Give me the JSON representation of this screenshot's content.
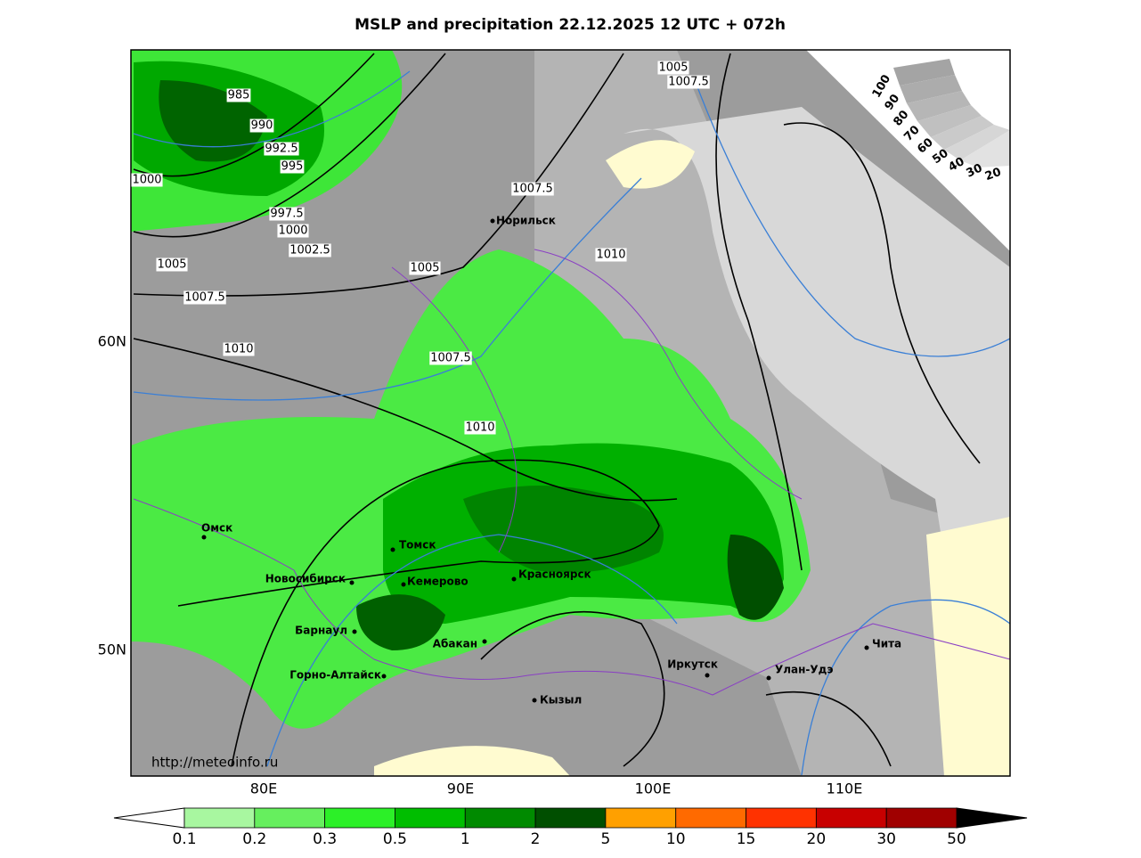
{
  "header": {
    "title": "MSLP and precipitation 22.12.2025 12 UTC + 072h"
  },
  "map": {
    "lat_labels": [
      "60N",
      "50N"
    ],
    "lon_labels": [
      "80E",
      "90E",
      "100E",
      "110E"
    ],
    "isobar_labels": [
      985,
      990,
      992.5,
      995,
      1000,
      997.5,
      1000,
      1002.5,
      1005,
      1007.5,
      1010,
      1005,
      1007.5,
      1010,
      1007.5,
      1010,
      1005,
      1007.5
    ],
    "cities": [
      "Норильск",
      "Омск",
      "Томск",
      "Новосибирск",
      "Кемерово",
      "Красноярск",
      "Барнаул",
      "Абакан",
      "Горно-Алтайск",
      "Иркутск",
      "Кызыл",
      "Улан-Удэ",
      "Чита"
    ],
    "source": "http://meteoinfo.ru"
  },
  "cloud_legend": [
    100,
    90,
    80,
    70,
    60,
    50,
    40,
    30,
    20
  ],
  "colorbar": {
    "ticks": [
      0.1,
      0.2,
      0.3,
      0.5,
      1,
      2,
      5,
      10,
      15,
      20,
      30,
      50
    ],
    "colors": [
      "#a8f7a0",
      "#66ef5e",
      "#2cf028",
      "#00be00",
      "#008a00",
      "#004f00",
      "#ffa000",
      "#ff6a00",
      "#ff3200",
      "#c80000",
      "#a00000"
    ],
    "under_color": "#ffffff",
    "over_color": "#000000"
  }
}
